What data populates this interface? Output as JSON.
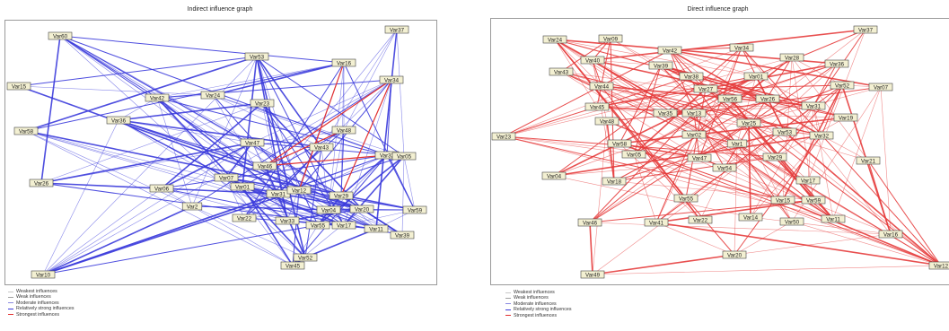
{
  "left_graph": {
    "title": "Indirect influence graph",
    "edge_color": "#3b3bdc",
    "strong_color": "#e23030",
    "nodes": [
      {
        "id": "Var60",
        "label": "Var60"
      },
      {
        "id": "Var37",
        "label": "Var37"
      },
      {
        "id": "Var53",
        "label": "Var53"
      },
      {
        "id": "Var16",
        "label": "Var16"
      },
      {
        "id": "Var15",
        "label": "Var15"
      },
      {
        "id": "Var34",
        "label": "Var34"
      },
      {
        "id": "Var42",
        "label": "Var42"
      },
      {
        "id": "Var24",
        "label": "Var24"
      },
      {
        "id": "Var23",
        "label": "Var23"
      },
      {
        "id": "Var36",
        "label": "Var36"
      },
      {
        "id": "Var58",
        "label": "Var58"
      },
      {
        "id": "Var47",
        "label": "Var47"
      },
      {
        "id": "Var48",
        "label": "Var48"
      },
      {
        "id": "Var43",
        "label": "Var43"
      },
      {
        "id": "Var32",
        "label": "Var32"
      },
      {
        "id": "Var05",
        "label": "Var05"
      },
      {
        "id": "Var46",
        "label": "Var46"
      },
      {
        "id": "Var26",
        "label": "Var26"
      },
      {
        "id": "Var06",
        "label": "Var06"
      },
      {
        "id": "Var07",
        "label": "Var07"
      },
      {
        "id": "Var01",
        "label": "Var01"
      },
      {
        "id": "Var31",
        "label": "Var31"
      },
      {
        "id": "Var12",
        "label": "Var12"
      },
      {
        "id": "Var29",
        "label": "Var29"
      },
      {
        "id": "Var2",
        "label": "Var2"
      },
      {
        "id": "Var04",
        "label": "Var04"
      },
      {
        "id": "Var20",
        "label": "Var20"
      },
      {
        "id": "Var59",
        "label": "Var59"
      },
      {
        "id": "Var22",
        "label": "Var22"
      },
      {
        "id": "Var33",
        "label": "Var33"
      },
      {
        "id": "Var55",
        "label": "Var55"
      },
      {
        "id": "Var17",
        "label": "Var17"
      },
      {
        "id": "Var11",
        "label": "Var11"
      },
      {
        "id": "Var39",
        "label": "Var39"
      },
      {
        "id": "Var52",
        "label": "Var52"
      },
      {
        "id": "Var45",
        "label": "Var45"
      },
      {
        "id": "Var10",
        "label": "Var10"
      }
    ],
    "legend": [
      {
        "label": "Weakest influences",
        "color": "#c8c8c8"
      },
      {
        "label": "Weak influences",
        "color": "#a0a0a0"
      },
      {
        "label": "Moderate influences",
        "color": "#8a8ae0"
      },
      {
        "label": "Relatively strong influences",
        "color": "#3b3bdc"
      },
      {
        "label": "Strongest influences",
        "color": "#e23030"
      }
    ]
  },
  "right_graph": {
    "title": "Direct influence graph",
    "edge_color": "#e63c3c",
    "nodes": [
      {
        "id": "Var24",
        "label": "Var24"
      },
      {
        "id": "Var09",
        "label": "Var09"
      },
      {
        "id": "Var37",
        "label": "Var37"
      },
      {
        "id": "Var40",
        "label": "Var40"
      },
      {
        "id": "Var42",
        "label": "Var42"
      },
      {
        "id": "Var34",
        "label": "Var34"
      },
      {
        "id": "Var28",
        "label": "Var28"
      },
      {
        "id": "Var43",
        "label": "Var43"
      },
      {
        "id": "Var39",
        "label": "Var39"
      },
      {
        "id": "Var38",
        "label": "Var38"
      },
      {
        "id": "Var01",
        "label": "Var01"
      },
      {
        "id": "Var36",
        "label": "Var36"
      },
      {
        "id": "Var44",
        "label": "Var44"
      },
      {
        "id": "Var27",
        "label": "Var27"
      },
      {
        "id": "Var56",
        "label": "Var56"
      },
      {
        "id": "Var26",
        "label": "Var26"
      },
      {
        "id": "Var52",
        "label": "Var52"
      },
      {
        "id": "Var07",
        "label": "Var07"
      },
      {
        "id": "Var45",
        "label": "Var45"
      },
      {
        "id": "Var31",
        "label": "Var31"
      },
      {
        "id": "Var35",
        "label": "Var35"
      },
      {
        "id": "Var13",
        "label": "Var13"
      },
      {
        "id": "Var19",
        "label": "Var19"
      },
      {
        "id": "Var23",
        "label": "Var23"
      },
      {
        "id": "Var48",
        "label": "Var48"
      },
      {
        "id": "Var25",
        "label": "Var25"
      },
      {
        "id": "Var53",
        "label": "Var53"
      },
      {
        "id": "Var02",
        "label": "Var02"
      },
      {
        "id": "Var32",
        "label": "Var32"
      },
      {
        "id": "Var58",
        "label": "Var58"
      },
      {
        "id": "Var1",
        "label": "Var1"
      },
      {
        "id": "Var05",
        "label": "Var05"
      },
      {
        "id": "Var47",
        "label": "Var47"
      },
      {
        "id": "Var29",
        "label": "Var29"
      },
      {
        "id": "Var54",
        "label": "Var54"
      },
      {
        "id": "Var21",
        "label": "Var21"
      },
      {
        "id": "Var04",
        "label": "Var04"
      },
      {
        "id": "Var18",
        "label": "Var18"
      },
      {
        "id": "Var17",
        "label": "Var17"
      },
      {
        "id": "Var55",
        "label": "Var55"
      },
      {
        "id": "Var15",
        "label": "Var15"
      },
      {
        "id": "Var59",
        "label": "Var59"
      },
      {
        "id": "Var46",
        "label": "Var46"
      },
      {
        "id": "Var41",
        "label": "Var41"
      },
      {
        "id": "Var22",
        "label": "Var22"
      },
      {
        "id": "Var14",
        "label": "Var14"
      },
      {
        "id": "Var50",
        "label": "Var50"
      },
      {
        "id": "Var11",
        "label": "Var11"
      },
      {
        "id": "Var16",
        "label": "Var16"
      },
      {
        "id": "Var20",
        "label": "Var20"
      },
      {
        "id": "Var12",
        "label": "Var12"
      },
      {
        "id": "Var49",
        "label": "Var49"
      }
    ],
    "legend": [
      {
        "label": "Weakest influences",
        "color": "#c8c8c8"
      },
      {
        "label": "Weak influences",
        "color": "#a0a0a0"
      },
      {
        "label": "Moderate influences",
        "color": "#8a8ae0"
      },
      {
        "label": "Relatively strong influences",
        "color": "#3b3bdc"
      },
      {
        "label": "Strongest influences",
        "color": "#e23030"
      }
    ]
  }
}
